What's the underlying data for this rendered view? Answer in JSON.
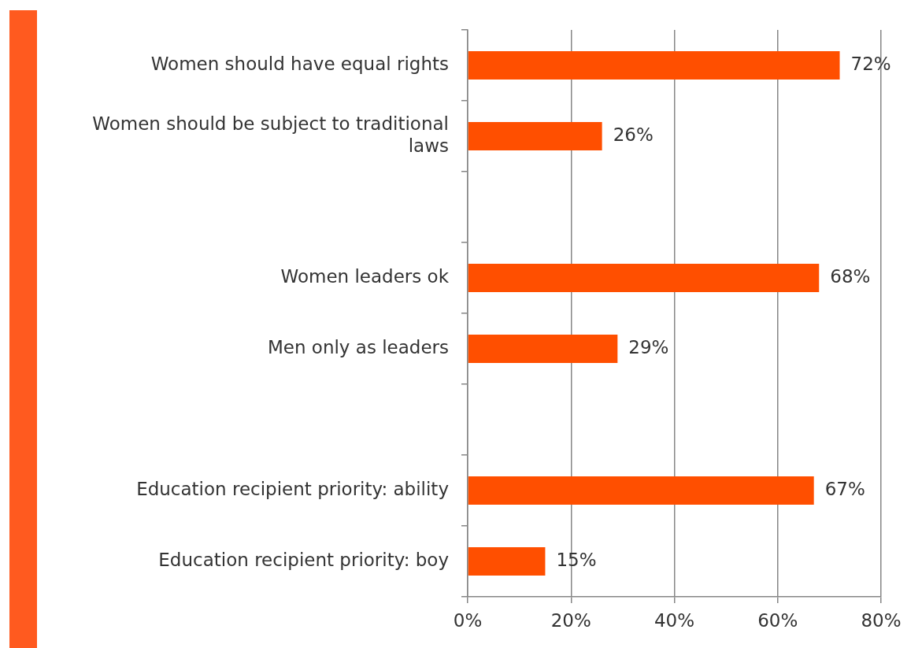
{
  "chart_data": {
    "type": "bar",
    "orientation": "horizontal",
    "categories": [
      "Women should have equal rights",
      "Women should be subject to traditional laws",
      null,
      "Women leaders ok",
      "Men only as leaders",
      null,
      "Education recipient priority: ability",
      "Education recipient priority: boy"
    ],
    "values": [
      72,
      26,
      null,
      68,
      29,
      null,
      67,
      15
    ],
    "color": "#ff4f00",
    "value_labels": [
      "72%",
      "26%",
      null,
      "68%",
      "29%",
      null,
      "67%",
      "15%"
    ],
    "xlim": [
      0,
      80
    ],
    "xticks": [
      {
        "value": 0,
        "label": "0%"
      },
      {
        "value": 20,
        "label": "20%"
      },
      {
        "value": 40,
        "label": "40%"
      },
      {
        "value": 60,
        "label": "60%"
      },
      {
        "value": 80,
        "label": "80%"
      }
    ],
    "grid": "x"
  }
}
